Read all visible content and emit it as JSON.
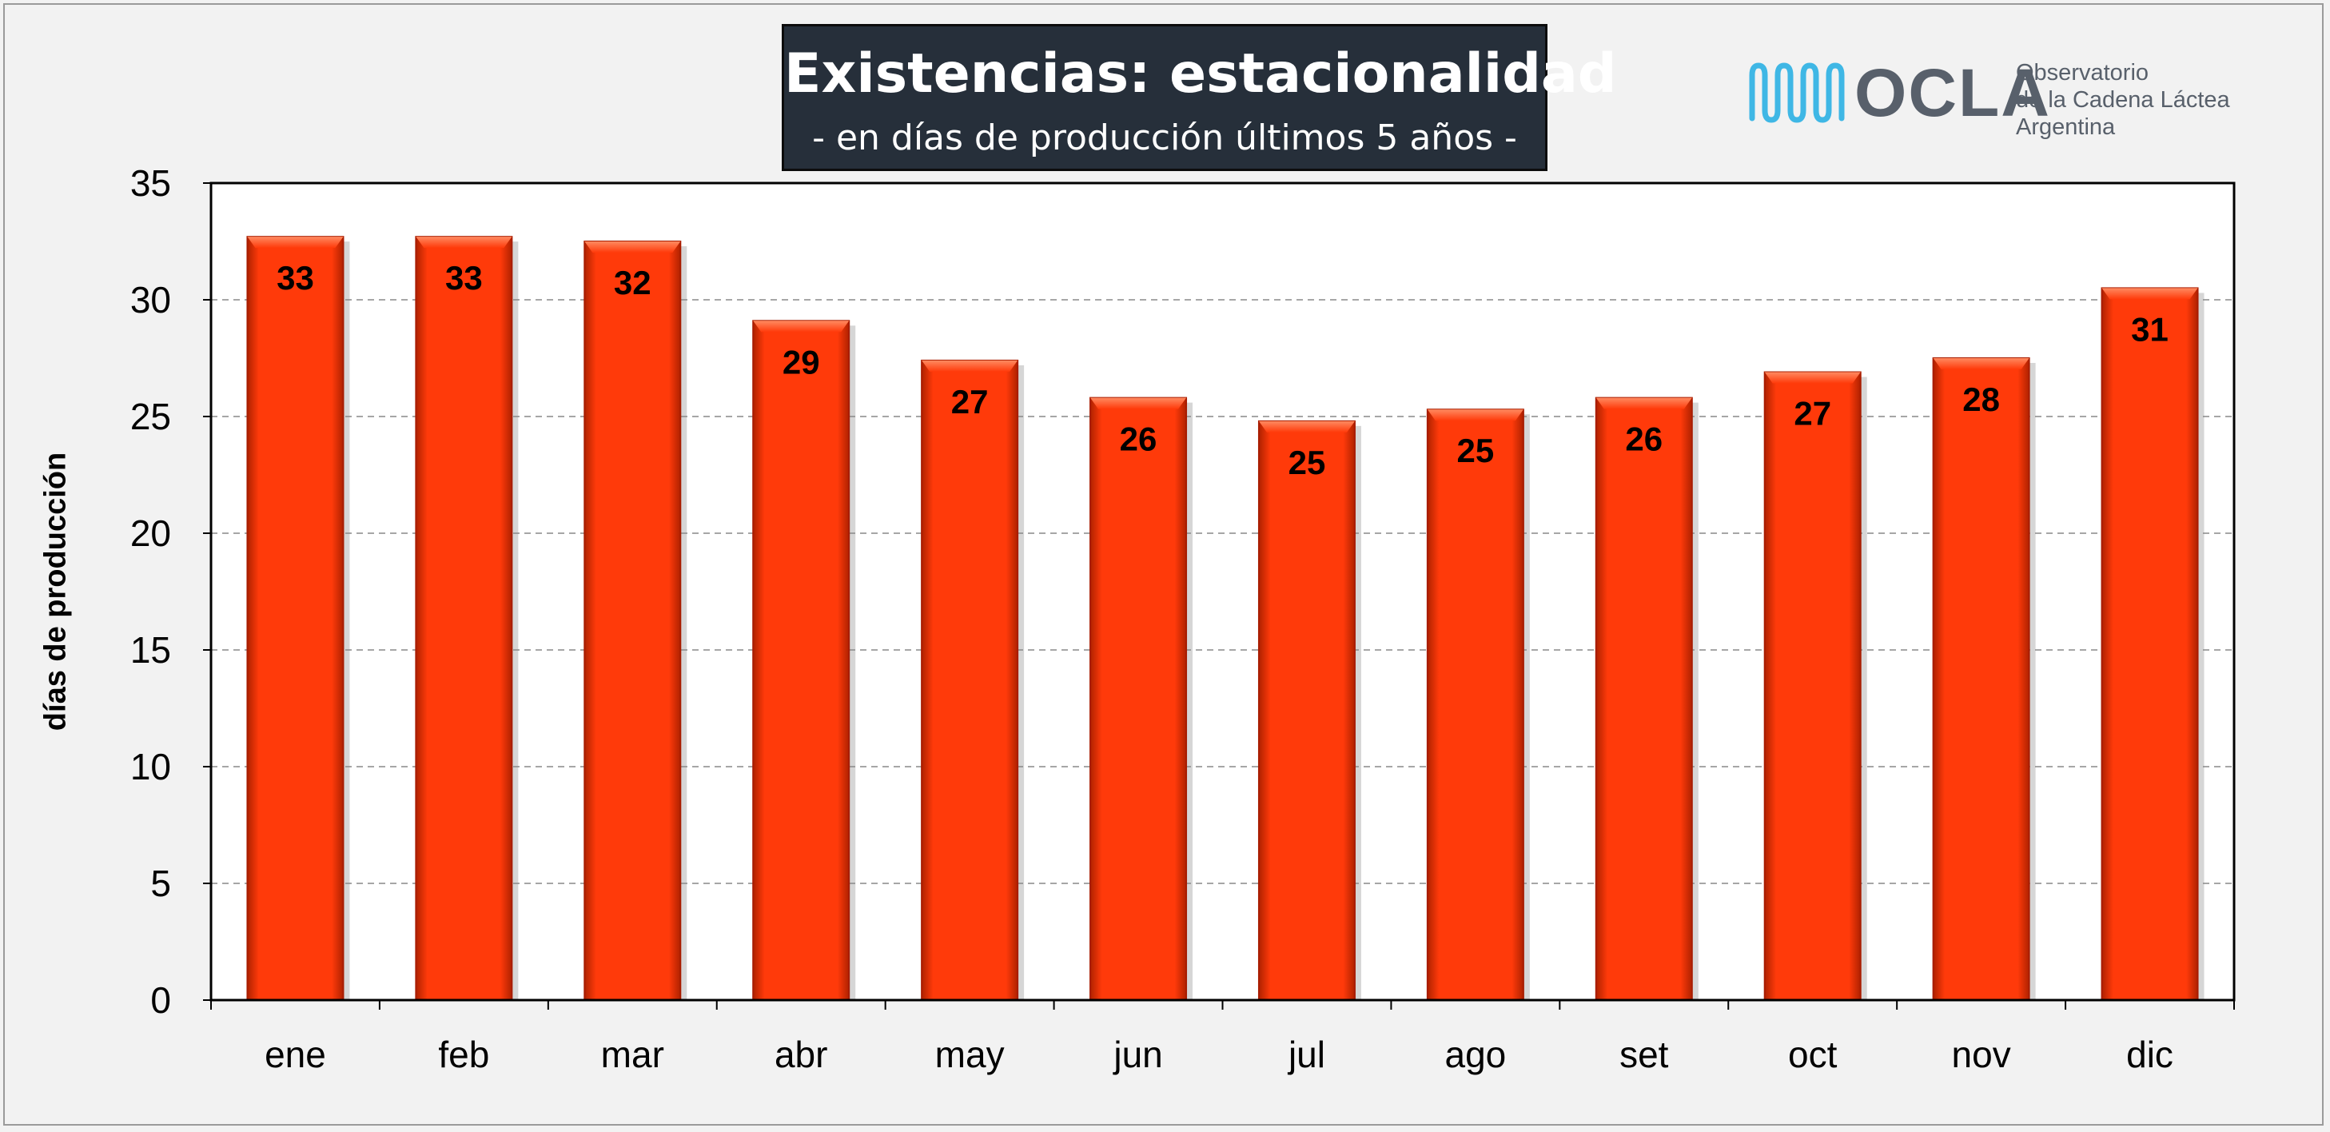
{
  "colors": {
    "bar": "#ff3a0a",
    "bar_edge": "#a81c00",
    "title_bg": "#262f3a",
    "logo_wave": "#3fb7e5",
    "logo_text": "#58606b"
  },
  "logo": {
    "wordmark": "OCLA",
    "line1": "Observatorio",
    "line2": "de la Cadena Láctea",
    "line3": "Argentina"
  },
  "chart_data": {
    "type": "bar",
    "title": "Existencias: estacionalidad",
    "subtitle": "- en días de producción últimos 5 años -",
    "xlabel": "",
    "ylabel": "días de producción",
    "categories": [
      "ene",
      "feb",
      "mar",
      "abr",
      "may",
      "jun",
      "jul",
      "ago",
      "set",
      "oct",
      "nov",
      "dic"
    ],
    "values": [
      32.7,
      32.7,
      32.5,
      29.1,
      27.4,
      25.8,
      24.8,
      25.3,
      25.8,
      26.9,
      27.5,
      30.5
    ],
    "data_labels": [
      "33",
      "33",
      "32",
      "29",
      "27",
      "26",
      "25",
      "25",
      "26",
      "27",
      "28",
      "31"
    ],
    "ylim": [
      0,
      35
    ],
    "yticks": [
      0,
      5,
      10,
      15,
      20,
      25,
      30,
      35
    ],
    "grid": true
  }
}
